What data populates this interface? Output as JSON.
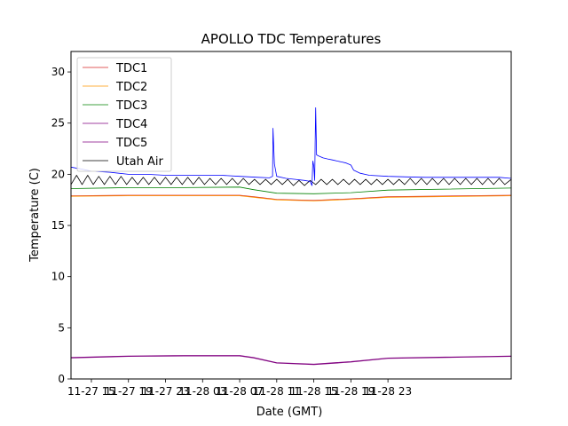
{
  "chart_data": {
    "type": "line",
    "title": "APOLLO TDC Temperatures",
    "xlabel": "Date (GMT)",
    "ylabel": "Temperature (C)",
    "ylim": [
      0,
      32
    ],
    "yticks": [
      0,
      5,
      10,
      15,
      20,
      25,
      30
    ],
    "xlim_hours": [
      -2.2,
      45.3
    ],
    "xticks": [
      {
        "label": "11-27 15",
        "hour": 0
      },
      {
        "label": "11-27 19",
        "hour": 4
      },
      {
        "label": "11-27 23",
        "hour": 8
      },
      {
        "label": "11-28 03",
        "hour": 12
      },
      {
        "label": "11-28 07",
        "hour": 16
      },
      {
        "label": "11-28 11",
        "hour": 20
      },
      {
        "label": "11-28 15",
        "hour": 24
      },
      {
        "label": "11-28 19",
        "hour": 28
      },
      {
        "label": "11-28 23",
        "hour": 32
      }
    ],
    "grid": false,
    "legend_position": "top-left",
    "series": [
      {
        "name": "TDC1",
        "color": "#d62728",
        "x": [
          -2.2,
          4,
          10,
          16,
          17.5,
          20,
          24,
          28,
          32,
          45.3
        ],
        "y": [
          17.9,
          17.95,
          17.95,
          17.95,
          17.8,
          17.55,
          17.45,
          17.6,
          17.8,
          17.95
        ]
      },
      {
        "name": "TDC2",
        "color": "#ff9900",
        "x": [
          -2.2,
          4,
          10,
          16,
          17.5,
          20,
          24,
          28,
          32,
          45.3
        ],
        "y": [
          17.85,
          17.9,
          17.9,
          17.9,
          17.75,
          17.5,
          17.4,
          17.55,
          17.75,
          17.9
        ]
      },
      {
        "name": "TDC3",
        "color": "#008000",
        "x": [
          -2.2,
          4,
          10,
          16,
          17.5,
          20,
          24,
          28,
          32,
          45.3
        ],
        "y": [
          18.6,
          18.7,
          18.7,
          18.75,
          18.5,
          18.15,
          18.1,
          18.2,
          18.45,
          18.65
        ]
      },
      {
        "name": "TDC4",
        "color": "#800080",
        "x": [
          -2.2,
          4,
          10,
          16,
          17.5,
          20,
          24,
          28,
          32,
          45.3
        ],
        "y": [
          2.1,
          2.25,
          2.3,
          2.3,
          2.1,
          1.6,
          1.45,
          1.7,
          2.05,
          2.25
        ]
      },
      {
        "name": "TDC5",
        "color": "#800080",
        "x": [
          -2.2,
          4,
          10,
          16,
          17.5,
          20,
          24,
          28,
          32,
          45.3
        ],
        "y": [
          2.05,
          2.2,
          2.25,
          2.25,
          2.05,
          1.55,
          1.4,
          1.65,
          2.0,
          2.2
        ]
      },
      {
        "name": "Utah Air",
        "color": "#000000",
        "x": [
          -2.2,
          -1.6,
          -1.0,
          -0.4,
          0.2,
          0.8,
          1.4,
          2.0,
          2.6,
          3.2,
          3.8,
          4.4,
          5.0,
          5.6,
          6.2,
          6.8,
          7.4,
          8.0,
          8.6,
          9.2,
          9.8,
          10.4,
          11.0,
          11.6,
          12.2,
          12.8,
          13.4,
          14.0,
          14.6,
          15.2,
          15.8,
          16.4,
          17.0,
          17.6,
          18.2,
          18.8,
          19.4,
          20.0,
          20.6,
          21.2,
          21.8,
          22.4,
          23.0,
          23.6,
          24.2,
          24.8,
          25.4,
          26.0,
          26.6,
          27.2,
          27.8,
          28.4,
          29.0,
          29.6,
          30.2,
          30.8,
          31.4,
          32.0,
          32.6,
          33.2,
          33.8,
          34.4,
          35.0,
          35.6,
          36.2,
          36.8,
          37.4,
          38.0,
          38.6,
          39.2,
          39.8,
          40.4,
          41.0,
          41.6,
          42.2,
          42.8,
          43.4,
          44.0,
          44.6,
          45.3
        ],
        "y": [
          19.0,
          19.9,
          19.0,
          19.9,
          19.0,
          19.8,
          19.0,
          19.8,
          19.0,
          19.8,
          19.0,
          19.7,
          19.0,
          19.7,
          19.0,
          19.7,
          19.0,
          19.7,
          19.0,
          19.7,
          19.0,
          19.7,
          19.0,
          19.7,
          19.0,
          19.6,
          19.0,
          19.6,
          19.0,
          19.6,
          19.0,
          19.6,
          19.0,
          19.5,
          19.0,
          19.5,
          19.0,
          19.5,
          19.0,
          19.5,
          18.9,
          19.4,
          18.9,
          19.4,
          19.0,
          19.5,
          19.0,
          19.5,
          19.0,
          19.5,
          19.0,
          19.5,
          19.0,
          19.5,
          19.0,
          19.5,
          19.0,
          19.5,
          19.0,
          19.5,
          19.0,
          19.6,
          19.0,
          19.6,
          19.0,
          19.6,
          19.0,
          19.6,
          19.0,
          19.6,
          19.0,
          19.6,
          19.0,
          19.6,
          19.0,
          19.6,
          19.0,
          19.6,
          19.0,
          19.5
        ]
      },
      {
        "name": "",
        "color": "#0000ff",
        "x": [
          -2.2,
          -1.0,
          0,
          2,
          4,
          6,
          8,
          10,
          12,
          14,
          16,
          18,
          19.2,
          19.55,
          19.6,
          19.75,
          20.0,
          21,
          22,
          23,
          23.6,
          23.7,
          23.8,
          23.9,
          24.0,
          24.1,
          24.15,
          24.2,
          24.3,
          24.5,
          25,
          25.5,
          26,
          26.5,
          27,
          27.5,
          28,
          28.3,
          29,
          30,
          32,
          34,
          36,
          38,
          40,
          42,
          44,
          45.3
        ],
        "y": [
          20.7,
          20.5,
          20.3,
          20.2,
          20.0,
          20.0,
          19.9,
          19.9,
          19.9,
          19.9,
          19.8,
          19.7,
          19.65,
          19.8,
          24.5,
          21.0,
          19.8,
          19.6,
          19.5,
          19.4,
          19.3,
          19.1,
          18.9,
          21.3,
          20.8,
          19.4,
          23.0,
          26.5,
          21.9,
          21.8,
          21.6,
          21.5,
          21.4,
          21.3,
          21.2,
          21.1,
          20.9,
          20.4,
          20.1,
          19.9,
          19.8,
          19.75,
          19.7,
          19.7,
          19.7,
          19.7,
          19.7,
          19.6
        ]
      }
    ]
  }
}
